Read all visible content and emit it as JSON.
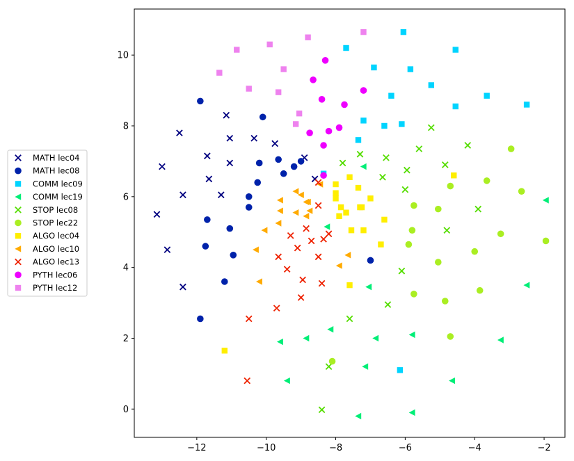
{
  "chart_data": {
    "type": "scatter",
    "title": "",
    "xlabel": "",
    "ylabel": "",
    "xlim": [
      -13.8,
      -1.4
    ],
    "ylim": [
      -0.8,
      11.3
    ],
    "xticks": [
      -12,
      -10,
      -8,
      -6,
      -4,
      -2
    ],
    "yticks": [
      0,
      2,
      4,
      6,
      8,
      10
    ],
    "xtick_labels": [
      "−12",
      "−10",
      "−8",
      "−6",
      "−4",
      "−2"
    ],
    "ytick_labels": [
      "0",
      "2",
      "4",
      "6",
      "8",
      "10"
    ],
    "grid": false,
    "legend_position": "outside-left",
    "series": [
      {
        "name": "MATH lec04",
        "marker": "x",
        "color": "#000080",
        "points": [
          [
            -13.0,
            6.85
          ],
          [
            -12.5,
            7.8
          ],
          [
            -12.4,
            6.05
          ],
          [
            -11.7,
            7.15
          ],
          [
            -11.65,
            6.5
          ],
          [
            -11.15,
            8.3
          ],
          [
            -11.05,
            7.65
          ],
          [
            -11.05,
            6.95
          ],
          [
            -11.3,
            6.05
          ],
          [
            -10.35,
            7.65
          ],
          [
            -9.75,
            7.5
          ],
          [
            -8.9,
            7.1
          ],
          [
            -8.6,
            6.5
          ],
          [
            -13.15,
            5.5
          ],
          [
            -12.85,
            4.5
          ],
          [
            -12.4,
            3.45
          ]
        ]
      },
      {
        "name": "MATH lec08",
        "marker": "o",
        "color": "#0022aa",
        "points": [
          [
            -11.9,
            8.7
          ],
          [
            -10.1,
            8.25
          ],
          [
            -10.2,
            6.95
          ],
          [
            -9.65,
            7.05
          ],
          [
            -9.2,
            6.85
          ],
          [
            -9.0,
            7.0
          ],
          [
            -9.5,
            6.65
          ],
          [
            -10.25,
            6.4
          ],
          [
            -10.5,
            6.0
          ],
          [
            -10.5,
            5.7
          ],
          [
            -11.7,
            5.35
          ],
          [
            -11.05,
            5.1
          ],
          [
            -11.75,
            4.6
          ],
          [
            -10.95,
            4.35
          ],
          [
            -11.2,
            3.6
          ],
          [
            -11.9,
            2.55
          ],
          [
            -7.0,
            4.2
          ]
        ]
      },
      {
        "name": "COMM lec09",
        "marker": "s",
        "color": "#00d4ff",
        "points": [
          [
            -6.05,
            10.65
          ],
          [
            -7.7,
            10.2
          ],
          [
            -4.55,
            10.15
          ],
          [
            -6.9,
            9.65
          ],
          [
            -5.85,
            9.6
          ],
          [
            -5.25,
            9.15
          ],
          [
            -6.4,
            8.85
          ],
          [
            -3.65,
            8.85
          ],
          [
            -4.55,
            8.55
          ],
          [
            -2.5,
            8.6
          ],
          [
            -7.2,
            8.15
          ],
          [
            -6.1,
            8.05
          ],
          [
            -6.6,
            8.0
          ],
          [
            -7.35,
            7.6
          ],
          [
            -8.35,
            6.65
          ],
          [
            -6.15,
            1.1
          ]
        ]
      },
      {
        "name": "COMM lec19",
        "marker": "<",
        "color": "#00ee77",
        "points": [
          [
            -7.2,
            6.85
          ],
          [
            -1.95,
            5.9
          ],
          [
            -8.25,
            5.15
          ],
          [
            -7.05,
            3.45
          ],
          [
            -2.5,
            3.5
          ],
          [
            -8.15,
            2.25
          ],
          [
            -5.8,
            2.1
          ],
          [
            -6.85,
            2.0
          ],
          [
            -8.85,
            2.0
          ],
          [
            -3.25,
            1.95
          ],
          [
            -9.6,
            1.9
          ],
          [
            -7.15,
            1.2
          ],
          [
            -9.4,
            0.8
          ],
          [
            -4.65,
            0.8
          ],
          [
            -5.8,
            -0.1
          ],
          [
            -7.35,
            -0.2
          ]
        ]
      },
      {
        "name": "STOP lec08",
        "marker": "x",
        "color": "#55dd00",
        "points": [
          [
            -5.25,
            7.95
          ],
          [
            -4.2,
            7.45
          ],
          [
            -5.6,
            7.35
          ],
          [
            -7.3,
            7.2
          ],
          [
            -6.55,
            7.1
          ],
          [
            -7.8,
            6.95
          ],
          [
            -4.85,
            6.9
          ],
          [
            -5.95,
            6.75
          ],
          [
            -6.65,
            6.55
          ],
          [
            -6.0,
            6.2
          ],
          [
            -3.9,
            5.65
          ],
          [
            -4.8,
            5.05
          ],
          [
            -6.1,
            3.9
          ],
          [
            -6.5,
            2.95
          ],
          [
            -7.6,
            2.55
          ],
          [
            -8.2,
            1.2
          ],
          [
            -8.4,
            -0.02
          ]
        ]
      },
      {
        "name": "STOP lec22",
        "marker": "o",
        "color": "#aaee22",
        "points": [
          [
            -2.95,
            7.35
          ],
          [
            -3.65,
            6.45
          ],
          [
            -4.7,
            6.3
          ],
          [
            -2.65,
            6.15
          ],
          [
            -5.75,
            5.75
          ],
          [
            -5.05,
            5.65
          ],
          [
            -5.8,
            5.05
          ],
          [
            -3.25,
            4.95
          ],
          [
            -1.95,
            4.75
          ],
          [
            -5.9,
            4.65
          ],
          [
            -4.0,
            4.45
          ],
          [
            -5.05,
            4.15
          ],
          [
            -3.85,
            3.35
          ],
          [
            -5.75,
            3.25
          ],
          [
            -4.85,
            3.05
          ],
          [
            -4.7,
            2.05
          ],
          [
            -8.1,
            1.35
          ]
        ]
      },
      {
        "name": "ALGO lec04",
        "marker": "s",
        "color": "#ffee00",
        "points": [
          [
            -4.6,
            6.6
          ],
          [
            -7.6,
            6.55
          ],
          [
            -8.0,
            6.35
          ],
          [
            -7.35,
            6.25
          ],
          [
            -8.0,
            6.1
          ],
          [
            -8.0,
            5.95
          ],
          [
            -7.0,
            5.95
          ],
          [
            -7.85,
            5.7
          ],
          [
            -7.3,
            5.7
          ],
          [
            -7.25,
            5.7
          ],
          [
            -7.7,
            5.55
          ],
          [
            -7.9,
            5.45
          ],
          [
            -6.6,
            5.35
          ],
          [
            -7.55,
            5.05
          ],
          [
            -7.2,
            5.05
          ],
          [
            -6.7,
            4.65
          ],
          [
            -7.6,
            3.5
          ],
          [
            -11.2,
            1.65
          ]
        ]
      },
      {
        "name": "ALGO lec10",
        "marker": "<",
        "color": "#ffaa00",
        "points": [
          [
            -8.45,
            6.35
          ],
          [
            -9.15,
            6.15
          ],
          [
            -9.0,
            6.05
          ],
          [
            -8.85,
            5.85
          ],
          [
            -9.6,
            5.9
          ],
          [
            -8.8,
            5.85
          ],
          [
            -8.75,
            5.6
          ],
          [
            -9.6,
            5.6
          ],
          [
            -9.15,
            5.55
          ],
          [
            -8.85,
            5.45
          ],
          [
            -9.65,
            5.25
          ],
          [
            -10.05,
            5.05
          ],
          [
            -10.3,
            4.5
          ],
          [
            -7.65,
            4.35
          ],
          [
            -7.9,
            4.05
          ],
          [
            -10.2,
            3.6
          ]
        ]
      },
      {
        "name": "ALGO lec13",
        "marker": "x",
        "color": "#ee2200",
        "points": [
          [
            -8.5,
            6.4
          ],
          [
            -8.5,
            5.75
          ],
          [
            -8.85,
            5.1
          ],
          [
            -8.2,
            4.95
          ],
          [
            -9.3,
            4.9
          ],
          [
            -8.35,
            4.8
          ],
          [
            -8.7,
            4.75
          ],
          [
            -9.1,
            4.55
          ],
          [
            -8.5,
            4.3
          ],
          [
            -9.65,
            4.3
          ],
          [
            -9.4,
            3.95
          ],
          [
            -8.95,
            3.65
          ],
          [
            -8.4,
            3.55
          ],
          [
            -9.0,
            3.15
          ],
          [
            -9.7,
            2.85
          ],
          [
            -10.5,
            2.55
          ],
          [
            -10.55,
            0.8
          ]
        ]
      },
      {
        "name": "PYTH lec06",
        "marker": "o",
        "color": "#ee00ff",
        "points": [
          [
            -8.3,
            9.85
          ],
          [
            -8.65,
            9.3
          ],
          [
            -7.2,
            9.0
          ],
          [
            -8.4,
            8.75
          ],
          [
            -7.75,
            8.6
          ],
          [
            -7.9,
            7.95
          ],
          [
            -8.2,
            7.85
          ],
          [
            -8.75,
            7.8
          ],
          [
            -8.35,
            7.45
          ],
          [
            -8.35,
            6.6
          ]
        ]
      },
      {
        "name": "PYTH lec12",
        "marker": "s",
        "color": "#ee82ee",
        "points": [
          [
            -7.2,
            10.65
          ],
          [
            -8.8,
            10.5
          ],
          [
            -9.9,
            10.3
          ],
          [
            -10.85,
            10.15
          ],
          [
            -9.5,
            9.6
          ],
          [
            -11.35,
            9.5
          ],
          [
            -10.5,
            9.05
          ],
          [
            -9.65,
            8.95
          ],
          [
            -9.05,
            8.35
          ],
          [
            -9.15,
            8.05
          ]
        ]
      }
    ]
  }
}
